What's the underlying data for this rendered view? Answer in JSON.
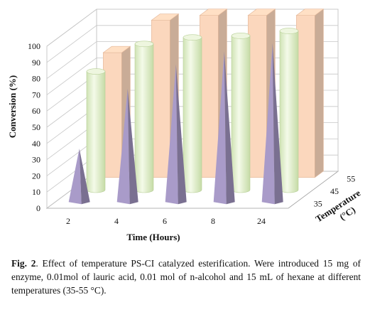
{
  "chart_data": {
    "type": "bar",
    "subtype": "3d-bar",
    "xlabel": "Time (Hours)",
    "ylabel": "Conversion (%)",
    "zlabel": "Temperature (°C)",
    "categories": [
      "2",
      "4",
      "6",
      "8",
      "24"
    ],
    "yticks": [
      "0",
      "10",
      "20",
      "30",
      "40",
      "50",
      "60",
      "70",
      "80",
      "90",
      "100"
    ],
    "ylim": [
      0,
      100
    ],
    "depth_ticks": [
      "35",
      "45",
      "55"
    ],
    "grid": true,
    "series": [
      {
        "name": "35",
        "shape": "pyramid",
        "color": "#a99bc9",
        "values": [
          33,
          70,
          85,
          93,
          98
        ]
      },
      {
        "name": "45",
        "shape": "cylinder",
        "color": "#e3f0cd",
        "values": [
          73,
          90,
          94,
          95,
          98
        ]
      },
      {
        "name": "55",
        "shape": "box",
        "color": "#fbd7bd",
        "values": [
          77,
          97,
          100,
          100,
          100
        ]
      }
    ]
  },
  "caption": {
    "label": "Fig. 2",
    "text": ". Effect of temperature PS-CI catalyzed esterification. Were introduced 15 mg of enzyme, 0.01mol of lauric acid, 0.01 mol of n-alcohol and 15 mL of hexane at different temperatures (35-55 °C)."
  }
}
